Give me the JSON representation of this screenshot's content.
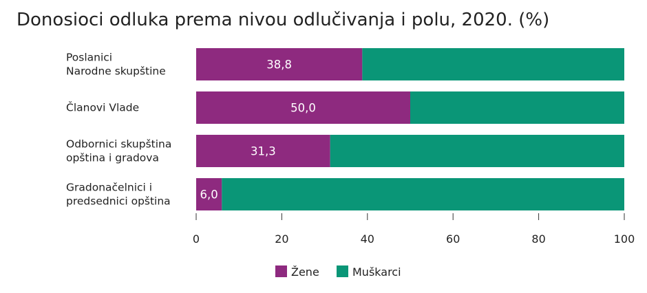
{
  "chart_data": {
    "type": "bar",
    "orientation": "horizontal",
    "stacked": true,
    "title": "Donosioci odluka prema nivou odlučivanja i polu, 2020. (%)",
    "categories": [
      [
        "Poslanici",
        "Narodne skupštine"
      ],
      [
        "Članovi Vlade"
      ],
      [
        "Odbornici skupština",
        "opština i gradova"
      ],
      [
        "Gradonačelnici i",
        "predsednici opština"
      ]
    ],
    "series": [
      {
        "name": "Žene",
        "color": "#8e2a7f",
        "values": [
          38.8,
          50.0,
          31.3,
          6.0
        ],
        "data_labels": [
          "38,8",
          "50,0",
          "31,3",
          "6,0"
        ]
      },
      {
        "name": "Muškarci",
        "color": "#0a9677",
        "values": [
          61.2,
          50.0,
          68.7,
          94.0
        ]
      }
    ],
    "xlim": [
      0,
      100
    ],
    "xticks": [
      0,
      20,
      40,
      60,
      80,
      100
    ],
    "grid": false,
    "legend": "bottom-center"
  }
}
